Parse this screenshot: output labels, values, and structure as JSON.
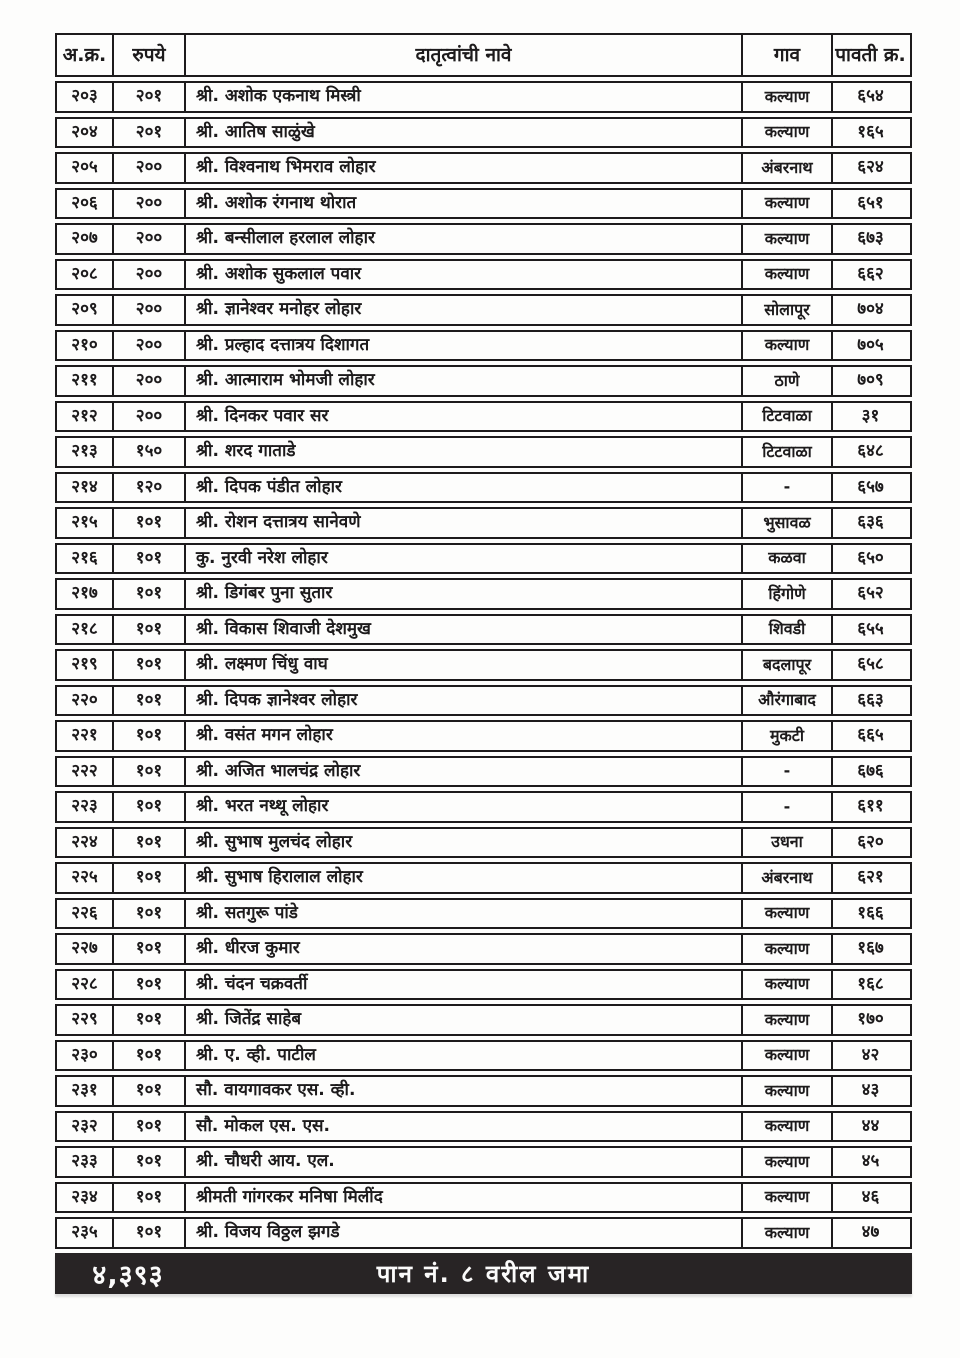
{
  "table": {
    "headers": {
      "serial": "अ.क्र.",
      "amount": "रुपये",
      "name": "दातृत्वांची नावे",
      "village": "गाव",
      "receipt": "पावती क्र."
    },
    "rows": [
      {
        "serial": "२०३",
        "amount": "२०१",
        "name": "श्री. अशोक एकनाथ मिस्त्री",
        "village": "कल्याण",
        "receipt": "६५४"
      },
      {
        "serial": "२०४",
        "amount": "२०१",
        "name": "श्री. आतिष साळुंखे",
        "village": "कल्याण",
        "receipt": "१६५"
      },
      {
        "serial": "२०५",
        "amount": "२००",
        "name": "श्री. विश्वनाथ भिमराव लोहार",
        "village": "अंबरनाथ",
        "receipt": "६२४"
      },
      {
        "serial": "२०६",
        "amount": "२००",
        "name": "श्री. अशोक रंगनाथ थोरात",
        "village": "कल्याण",
        "receipt": "६५१"
      },
      {
        "serial": "२०७",
        "amount": "२००",
        "name": "श्री. बन्सीलाल हरलाल लोहार",
        "village": "कल्याण",
        "receipt": "६७३"
      },
      {
        "serial": "२०८",
        "amount": "२००",
        "name": "श्री. अशोक सुकलाल पवार",
        "village": "कल्याण",
        "receipt": "६६२"
      },
      {
        "serial": "२०९",
        "amount": "२००",
        "name": "श्री. ज्ञानेश्वर मनोहर लोहार",
        "village": "सोलापूर",
        "receipt": "७०४"
      },
      {
        "serial": "२१०",
        "amount": "२००",
        "name": "श्री. प्रल्हाद दत्तात्रय दिशागत",
        "village": "कल्याण",
        "receipt": "७०५"
      },
      {
        "serial": "२११",
        "amount": "२००",
        "name": "श्री. आत्माराम भोमजी लोहार",
        "village": "ठाणे",
        "receipt": "७०९"
      },
      {
        "serial": "२१२",
        "amount": "२००",
        "name": "श्री. दिनकर पवार सर",
        "village": "टिटवाळा",
        "receipt": "३१"
      },
      {
        "serial": "२१३",
        "amount": "१५०",
        "name": "श्री. शरद गाताडे",
        "village": "टिटवाळा",
        "receipt": "६४८"
      },
      {
        "serial": "२१४",
        "amount": "१२०",
        "name": "श्री. दिपक पंडीत लोहार",
        "village": "-",
        "receipt": "६५७"
      },
      {
        "serial": "२१५",
        "amount": "१०१",
        "name": "श्री. रोशन दत्तात्रय सानेवणे",
        "village": "भुसावळ",
        "receipt": "६३६"
      },
      {
        "serial": "२१६",
        "amount": "१०१",
        "name": "कु. नुरवी नरेश लोहार",
        "village": "कळवा",
        "receipt": "६५०"
      },
      {
        "serial": "२१७",
        "amount": "१०१",
        "name": "श्री. डिगंबर पुना सुतार",
        "village": "हिंगोणे",
        "receipt": "६५२"
      },
      {
        "serial": "२१८",
        "amount": "१०१",
        "name": "श्री. विकास शिवाजी देशमुख",
        "village": "शिवडी",
        "receipt": "६५५"
      },
      {
        "serial": "२१९",
        "amount": "१०१",
        "name": "श्री. लक्ष्मण चिंधु वाघ",
        "village": "बदलापूर",
        "receipt": "६५८"
      },
      {
        "serial": "२२०",
        "amount": "१०१",
        "name": "श्री. दिपक ज्ञानेश्वर लोहार",
        "village": "औरंगाबाद",
        "receipt": "६६३"
      },
      {
        "serial": "२२१",
        "amount": "१०१",
        "name": "श्री. वसंत मगन लोहार",
        "village": "मुकटी",
        "receipt": "६६५"
      },
      {
        "serial": "२२२",
        "amount": "१०१",
        "name": "श्री. अजित भालचंद्र लोहार",
        "village": "-",
        "receipt": "६७६"
      },
      {
        "serial": "२२३",
        "amount": "१०१",
        "name": "श्री. भरत नथ्थू लोहार",
        "village": "-",
        "receipt": "६११"
      },
      {
        "serial": "२२४",
        "amount": "१०१",
        "name": "श्री. सुभाष मुलचंद लोहार",
        "village": "उधना",
        "receipt": "६२०"
      },
      {
        "serial": "२२५",
        "amount": "१०१",
        "name": "श्री. सुभाष हिरालाल लोहार",
        "village": "अंबरनाथ",
        "receipt": "६२१"
      },
      {
        "serial": "२२६",
        "amount": "१०१",
        "name": "श्री. सतगुरू पांडे",
        "village": "कल्याण",
        "receipt": "१६६"
      },
      {
        "serial": "२२७",
        "amount": "१०१",
        "name": "श्री. धीरज कुमार",
        "village": "कल्याण",
        "receipt": "१६७"
      },
      {
        "serial": "२२८",
        "amount": "१०१",
        "name": "श्री. चंदन चक्रवर्ती",
        "village": "कल्याण",
        "receipt": "१६८"
      },
      {
        "serial": "२२९",
        "amount": "१०१",
        "name": "श्री. जितेंद्र साहेब",
        "village": "कल्याण",
        "receipt": "१७०"
      },
      {
        "serial": "२३०",
        "amount": "१०१",
        "name": "श्री. ए. व्ही. पाटील",
        "village": "कल्याण",
        "receipt": "४२"
      },
      {
        "serial": "२३१",
        "amount": "१०१",
        "name": "सौ. वायगावकर एस. व्ही.",
        "village": "कल्याण",
        "receipt": "४३"
      },
      {
        "serial": "२३२",
        "amount": "१०१",
        "name": "सौ. मोकल एस. एस.",
        "village": "कल्याण",
        "receipt": "४४"
      },
      {
        "serial": "२३३",
        "amount": "१०१",
        "name": "श्री. चौधरी आय. एल.",
        "village": "कल्याण",
        "receipt": "४५"
      },
      {
        "serial": "२३४",
        "amount": "१०१",
        "name": "श्रीमती गांगरकर मनिषा मिलींद",
        "village": "कल्याण",
        "receipt": "४६"
      },
      {
        "serial": "२३५",
        "amount": "१०१",
        "name": "श्री. विजय विठ्ठल झगडे",
        "village": "कल्याण",
        "receipt": "४७"
      }
    ]
  },
  "footer": {
    "total": "४,३९३",
    "label": "पान नं. ८ वरील जमा"
  },
  "colors": {
    "border": "#1d1b1c",
    "text": "#1d1b1c",
    "footer_bg": "#282425",
    "footer_text": "#fbfbfb",
    "page_bg": "#fdfdfc"
  }
}
